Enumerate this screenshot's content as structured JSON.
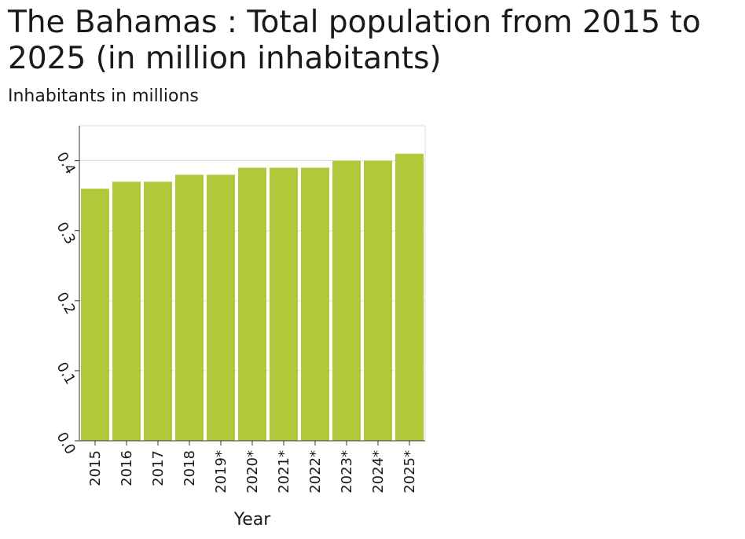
{
  "chart_data": {
    "type": "bar",
    "title": "The Bahamas : Total population from 2015 to 2025 (in million inhabitants)",
    "ylabel": "Inhabitants in millions",
    "xlabel": "Year",
    "categories": [
      "2015",
      "2016",
      "2017",
      "2018",
      "2019*",
      "2020*",
      "2021*",
      "2022*",
      "2023*",
      "2024*",
      "2025*"
    ],
    "values": [
      0.36,
      0.37,
      0.37,
      0.38,
      0.38,
      0.39,
      0.39,
      0.39,
      0.4,
      0.4,
      0.41
    ],
    "yticks": [
      "0.0",
      "0.1",
      "0.2",
      "0.3",
      "0.4"
    ],
    "ylim": [
      0,
      0.45
    ],
    "grid": true,
    "bar_color": "#b0c93b",
    "grid_color": "#dddddd"
  }
}
